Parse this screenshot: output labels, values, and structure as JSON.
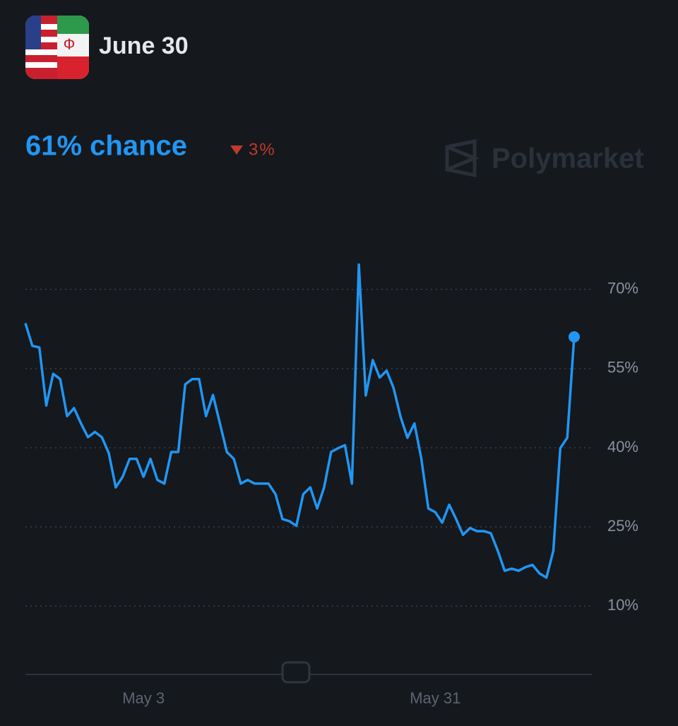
{
  "chart_data": {
    "type": "line",
    "title": "June 30",
    "subtitle": "61% chance",
    "change_label": "3%",
    "brand": "Polymarket",
    "categories": [
      null,
      null,
      null,
      null,
      null,
      null,
      null,
      null,
      null,
      null,
      null,
      null,
      null,
      null,
      null,
      null,
      null,
      "May 3",
      null,
      null,
      null,
      null,
      null,
      null,
      null,
      null,
      null,
      null,
      null,
      null,
      null,
      null,
      null,
      null,
      null,
      null,
      null,
      null,
      null,
      null,
      null,
      null,
      null,
      null,
      null,
      null,
      null,
      null,
      null,
      null,
      null,
      null,
      null,
      null,
      null,
      null,
      null,
      null,
      null,
      "May 31",
      null,
      null,
      null,
      null,
      null,
      null,
      null,
      null,
      null,
      null,
      null,
      null,
      null,
      null,
      null,
      null,
      null,
      null,
      null,
      null
    ],
    "series": [
      {
        "name": "June 30",
        "color": "#2196f3",
        "values": [
          63.6,
          59.3,
          59,
          48,
          54,
          53,
          46,
          47.5,
          44.6,
          42,
          43,
          42,
          39,
          32.5,
          34.5,
          37.9,
          37.9,
          34.5,
          37.9,
          33.9,
          33.2,
          39.2,
          39.2,
          52,
          53,
          53,
          46,
          50,
          44.6,
          39.2,
          37.9,
          33.2,
          33.9,
          33.2,
          33.2,
          33.2,
          31.2,
          26.5,
          26.1,
          25.2,
          31.2,
          32.5,
          28.5,
          32.5,
          39.2,
          39.9,
          40.5,
          33.2,
          74.7,
          49.9,
          56.6,
          53.3,
          54.6,
          51.3,
          45.9,
          41.9,
          44.6,
          37.9,
          28.5,
          27.8,
          25.8,
          29.2,
          26.5,
          23.5,
          24.8,
          24.2,
          24.2,
          23.8,
          20.5,
          16.7,
          17.1,
          16.7,
          17.4,
          17.8,
          16.2,
          15.4,
          20.5,
          39.9,
          41.9,
          61
        ]
      }
    ],
    "ylim": [
      0,
      80
    ],
    "yticks": [
      {
        "value": 10,
        "label": "10%"
      },
      {
        "value": 25,
        "label": "25%"
      },
      {
        "value": 40,
        "label": "40%"
      },
      {
        "value": 55,
        "label": "55%"
      },
      {
        "value": 70,
        "label": "70%"
      }
    ],
    "grid": true
  }
}
